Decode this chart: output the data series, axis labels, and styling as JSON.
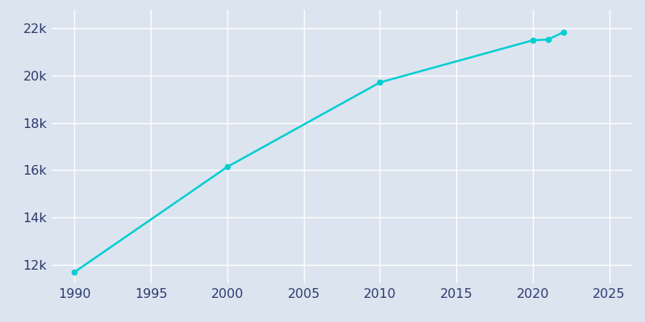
{
  "years": [
    1990,
    2000,
    2010,
    2020,
    2021,
    2022
  ],
  "population": [
    11680,
    16136,
    19719,
    21501,
    21534,
    21843
  ],
  "line_color": "#00CED1",
  "marker_color": "#00CED1",
  "bg_color": "#dce4f0",
  "plot_bg_color": "#dce4f0",
  "grid_color": "#ffffff",
  "tick_color": "#2d3a6e",
  "xlim": [
    1988.5,
    2026.5
  ],
  "ylim": [
    11200,
    22800
  ],
  "xticks": [
    1990,
    1995,
    2000,
    2005,
    2010,
    2015,
    2020,
    2025
  ],
  "yticks": [
    12000,
    14000,
    16000,
    18000,
    20000,
    22000
  ],
  "ytick_labels": [
    "12k",
    "14k",
    "16k",
    "18k",
    "20k",
    "22k"
  ],
  "linewidth": 1.8,
  "markersize": 4.5,
  "tick_fontsize": 11.5
}
